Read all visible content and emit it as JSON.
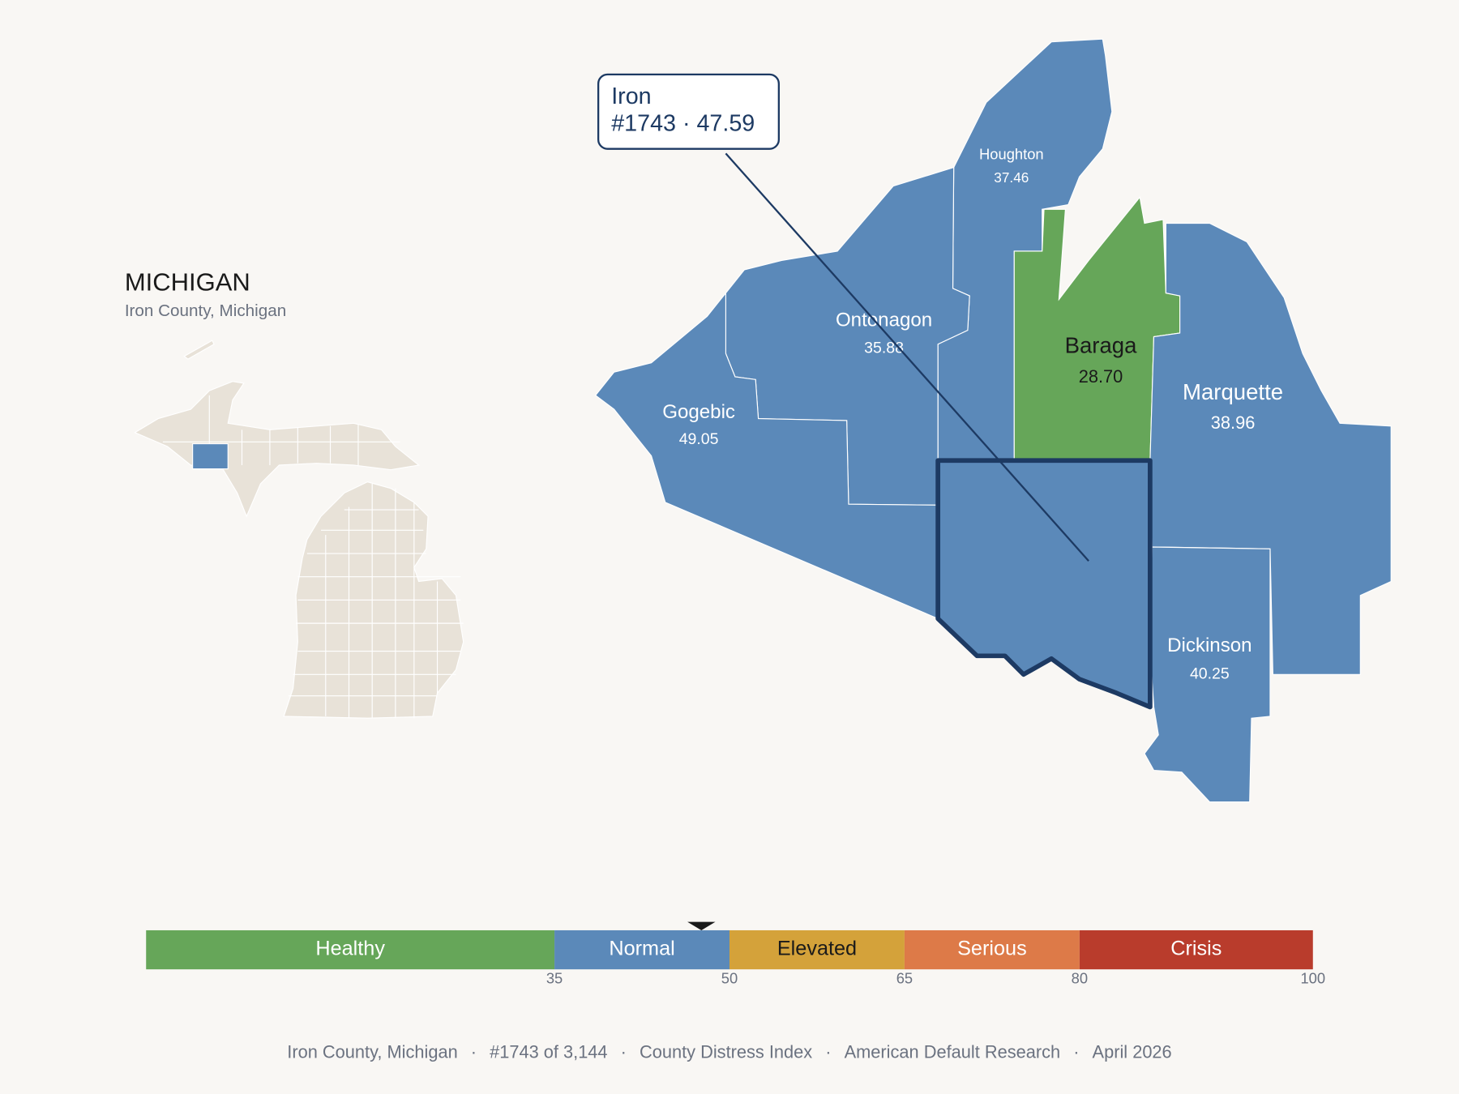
{
  "header": {
    "title": "MICHIGAN",
    "subtitle": "Iron County, Michigan"
  },
  "callout": {
    "name": "Iron",
    "detail": "#1743 · 47.59"
  },
  "counties": [
    {
      "name": "Houghton",
      "score": "37.46",
      "fill": "#5b89b9",
      "text_color": "#ffffff"
    },
    {
      "name": "Ontonagon",
      "score": "35.88",
      "fill": "#5b89b9",
      "text_color": "#ffffff"
    },
    {
      "name": "Gogebic",
      "score": "49.05",
      "fill": "#5b89b9",
      "text_color": "#ffffff"
    },
    {
      "name": "Baraga",
      "score": "28.70",
      "fill": "#66a659",
      "text_color": "#1a1a1a"
    },
    {
      "name": "Marquette",
      "score": "38.96",
      "fill": "#5b89b9",
      "text_color": "#ffffff"
    },
    {
      "name": "Dickinson",
      "score": "40.25",
      "fill": "#5b89b9",
      "text_color": "#ffffff"
    }
  ],
  "scale": {
    "range": [
      0,
      100
    ],
    "marker": 47.59,
    "bands": [
      {
        "label": "Healthy",
        "color": "#66a659",
        "text_color": "#ffffff"
      },
      {
        "label": "Normal",
        "color": "#5b89b9",
        "text_color": "#ffffff"
      },
      {
        "label": "Elevated",
        "color": "#d4a23a",
        "text_color": "#1a1a1a"
      },
      {
        "label": "Serious",
        "color": "#dd7a48",
        "text_color": "#ffffff"
      },
      {
        "label": "Crisis",
        "color": "#b93c2c",
        "text_color": "#ffffff"
      }
    ],
    "ticks": [
      35,
      50,
      65,
      80,
      100
    ]
  },
  "footer": {
    "separator": "·",
    "items": [
      "Iron County, Michigan",
      "#1743 of 3,144",
      "County Distress Index",
      "American Default Research",
      "April 2026"
    ]
  }
}
